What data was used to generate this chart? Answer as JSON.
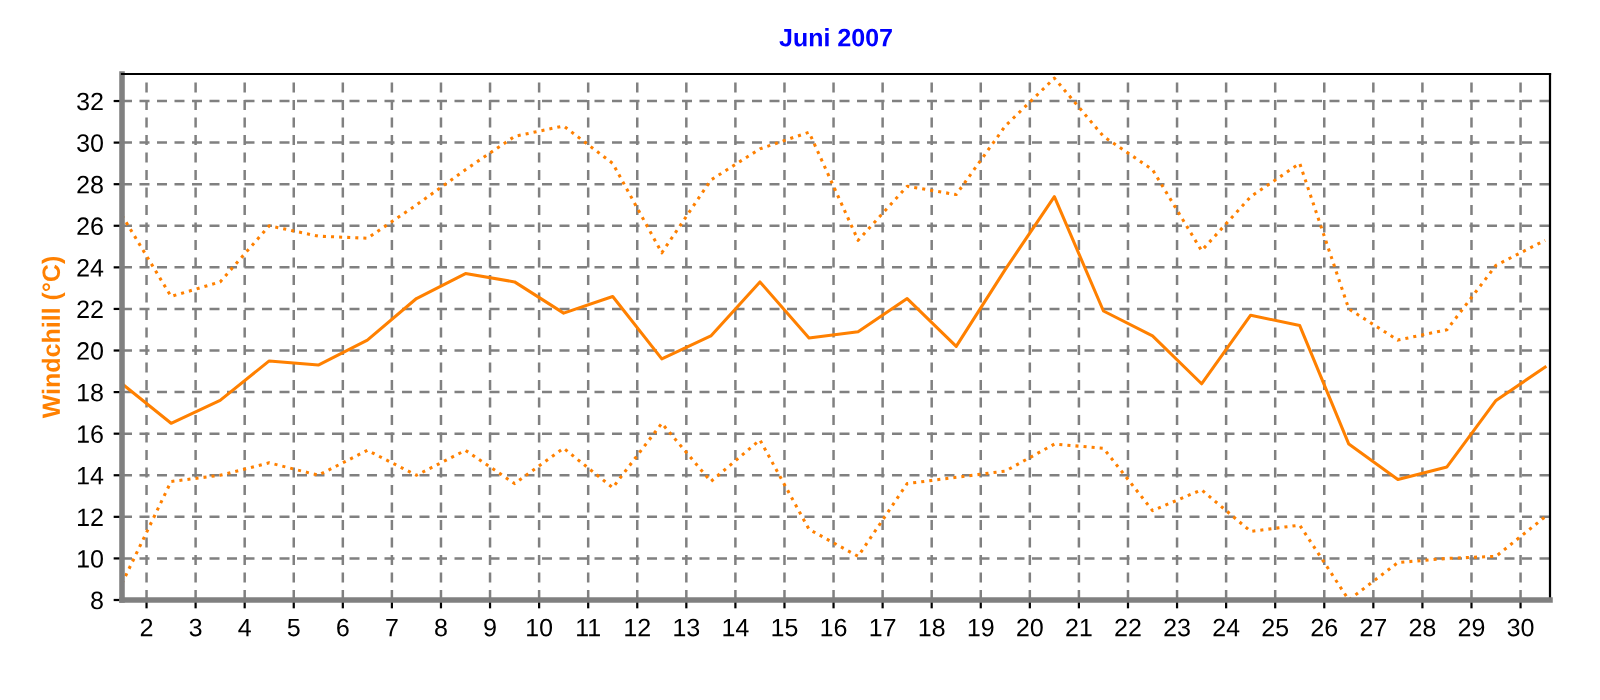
{
  "chart_data": {
    "type": "line",
    "title": "Juni 2007",
    "ylabel": "Windchill (°C)",
    "x": [
      1.5,
      2.5,
      3.5,
      4.5,
      5.5,
      6.5,
      7.5,
      8.5,
      9.5,
      10.5,
      11.5,
      12.5,
      13.5,
      14.5,
      15.5,
      16.5,
      17.5,
      18.5,
      19.5,
      20.5,
      21.5,
      22.5,
      23.5,
      24.5,
      25.5,
      26.5,
      27.5,
      28.5,
      29.5,
      30.5
    ],
    "series": [
      {
        "color": "#ff8000",
        "line_style": "dotted",
        "values": [
          26.5,
          22.6,
          23.3,
          26.0,
          25.5,
          25.4,
          27.0,
          28.7,
          30.3,
          30.8,
          29.0,
          24.7,
          28.2,
          29.7,
          30.5,
          25.3,
          27.9,
          27.5,
          30.8,
          33.1,
          30.3,
          28.7,
          24.8,
          27.4,
          29.0,
          22.0,
          20.5,
          21.0,
          24.1,
          25.3
        ]
      },
      {
        "color": "#ff8000",
        "line_style": "solid",
        "values": [
          18.4,
          16.5,
          17.6,
          19.5,
          19.3,
          20.5,
          22.5,
          23.7,
          23.3,
          21.8,
          22.6,
          19.6,
          20.7,
          23.3,
          20.6,
          20.9,
          22.5,
          20.2,
          23.9,
          27.4,
          21.9,
          20.7,
          18.4,
          21.7,
          21.2,
          15.5,
          13.8,
          14.4,
          17.6,
          19.2
        ]
      },
      {
        "color": "#ff8000",
        "line_style": "dotted",
        "values": [
          8.8,
          13.7,
          14.0,
          14.6,
          14.0,
          15.2,
          14.0,
          15.2,
          13.6,
          15.3,
          13.4,
          16.5,
          13.7,
          15.7,
          11.4,
          10.1,
          13.6,
          13.9,
          14.2,
          15.5,
          15.3,
          12.3,
          13.3,
          11.3,
          11.6,
          8.0,
          9.8,
          10.0,
          10.1,
          12.0
        ]
      }
    ],
    "xlim": [
      1.5,
      30.6
    ],
    "xticks": [
      2,
      3,
      4,
      5,
      6,
      7,
      8,
      9,
      10,
      11,
      12,
      13,
      14,
      15,
      16,
      17,
      18,
      19,
      20,
      21,
      22,
      23,
      24,
      25,
      26,
      27,
      28,
      29,
      30
    ],
    "ylim": [
      8,
      33.3
    ],
    "yticks": [
      8,
      10,
      12,
      14,
      16,
      18,
      20,
      22,
      24,
      26,
      28,
      30,
      32
    ],
    "grid": true,
    "marker": "none"
  }
}
